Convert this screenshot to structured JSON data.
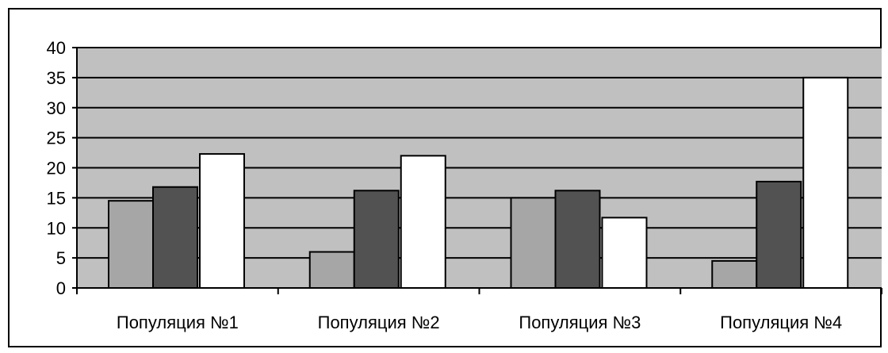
{
  "chart_data": {
    "type": "bar",
    "categories": [
      "Популяция №1",
      "Популяция №2",
      "Популяция №3",
      "Популяция №4"
    ],
    "series": [
      {
        "values": [
          14.5,
          6,
          15,
          4.5
        ],
        "color": "#a6a6a6"
      },
      {
        "values": [
          16.8,
          16.2,
          16.2,
          17.7
        ],
        "color": "#525252"
      },
      {
        "values": [
          22.3,
          22,
          11.7,
          35
        ],
        "color": "#ffffff"
      }
    ],
    "y_ticks": [
      "0",
      "5",
      "10",
      "15",
      "20",
      "25",
      "30",
      "35",
      "40"
    ],
    "ylim": [
      0,
      40
    ],
    "grid": true,
    "legend": "none",
    "plot_background": "#c0c0c0"
  }
}
